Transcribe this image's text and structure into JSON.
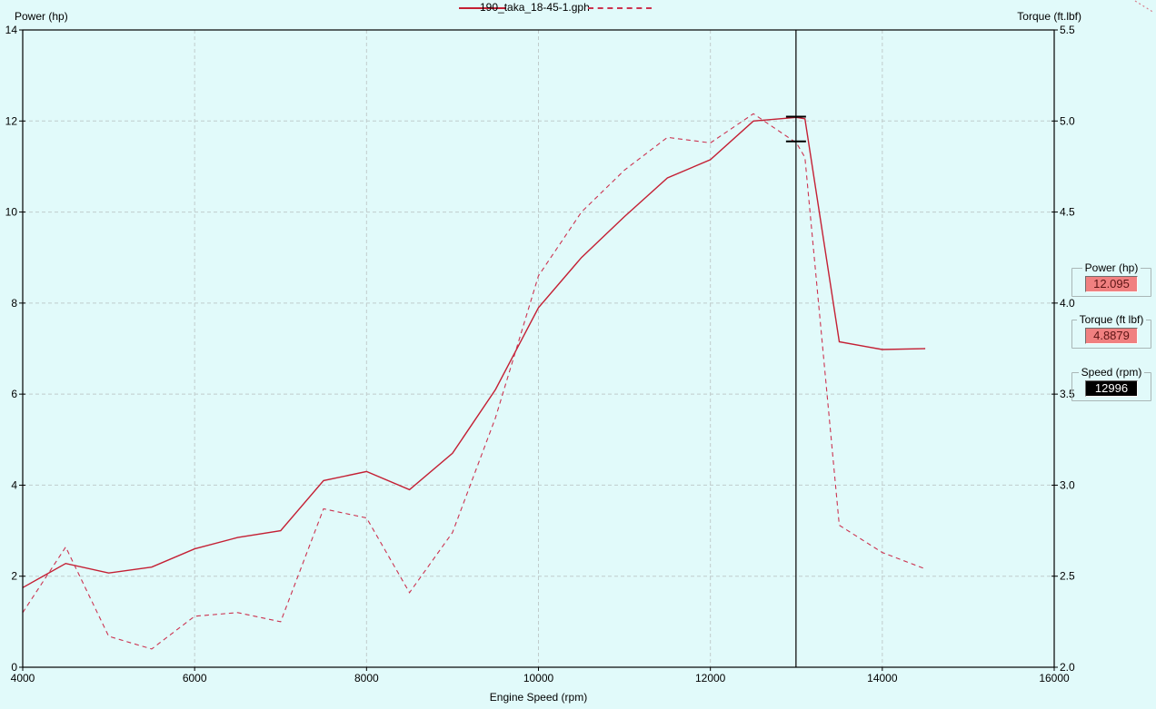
{
  "window": {
    "background": "#e1fafa"
  },
  "legend": {
    "file_label": "190_taka_18-45-1.gph"
  },
  "axes": {
    "left_title": "Power (hp)",
    "right_title": "Torque (ft.lbf)",
    "x_title": "Engine Speed (rpm)"
  },
  "readouts": {
    "power": {
      "label": "Power (hp)",
      "value": "12.095"
    },
    "torque": {
      "label": "Torque (ft lbf)",
      "value": "4.8879"
    },
    "speed": {
      "label": "Speed (rpm)",
      "value": "12996"
    }
  },
  "colors": {
    "background": "#e1fafa",
    "grid": "#c0cccc",
    "axis": "#000000",
    "power_line": "#c42034",
    "torque_line": "#cc3350",
    "cursor": "#000000",
    "readout_value_bg": "#f08080",
    "readout_value_text": "#5c1414",
    "speed_value_bg": "#000000",
    "speed_value_text": "#ffffff",
    "corner_artifact": "#d76a7a"
  },
  "chart_data": {
    "type": "line",
    "title": "190_taka_18-45-1.gph",
    "xlabel": "Engine Speed (rpm)",
    "grid": true,
    "legend_position": "top-center",
    "x_axis": {
      "min": 4000,
      "max": 16000,
      "ticks": [
        4000,
        6000,
        8000,
        10000,
        12000,
        14000,
        16000
      ],
      "tick_labels": [
        "4000",
        "6000",
        "8000",
        "10000",
        "12000",
        "14000",
        "16000"
      ]
    },
    "left_axis": {
      "title": "Power (hp)",
      "min": 0,
      "max": 14,
      "ticks": [
        14,
        12,
        10,
        8,
        6,
        4,
        2,
        0
      ],
      "tick_labels": [
        "14",
        "12",
        "10",
        "8",
        "6",
        "4",
        "2",
        "0"
      ]
    },
    "right_axis": {
      "title": "Torque (ft.lbf)",
      "min": 2.0,
      "max": 5.5,
      "ticks": [
        5.5,
        5.0,
        4.5,
        4.0,
        3.5,
        3.0,
        2.5,
        2.0
      ],
      "tick_labels": [
        "5.5",
        "5.0",
        "4.5",
        "4.0",
        "3.5",
        "3.0",
        "2.5",
        "2.0"
      ]
    },
    "x": [
      4000,
      4500,
      5000,
      5500,
      6000,
      6500,
      7000,
      7500,
      8000,
      8500,
      9000,
      9500,
      10000,
      10500,
      11000,
      11500,
      12000,
      12500,
      13000,
      13100,
      13500,
      14000,
      14500
    ],
    "series": [
      {
        "name": "Power (hp)",
        "axis": "left",
        "line_style": "solid",
        "color": "#c42034",
        "values": [
          1.75,
          2.28,
          2.07,
          2.2,
          2.6,
          2.85,
          3.0,
          4.1,
          4.3,
          3.9,
          4.7,
          6.1,
          7.9,
          9.0,
          9.9,
          10.75,
          11.15,
          12.0,
          12.08,
          12.05,
          7.15,
          6.98,
          7.0
        ]
      },
      {
        "name": "Torque (ft.lbf)",
        "axis": "right",
        "line_style": "dashed",
        "color": "#cc3350",
        "values": [
          2.3,
          2.66,
          2.17,
          2.1,
          2.28,
          2.3,
          2.25,
          2.87,
          2.82,
          2.41,
          2.74,
          3.37,
          4.15,
          4.5,
          4.73,
          4.91,
          4.88,
          5.04,
          4.88,
          4.8,
          2.78,
          2.63,
          2.54
        ]
      }
    ],
    "cursor": {
      "speed_rpm": 12996,
      "power_hp": 12.095,
      "torque_ftlbf": 4.8879
    }
  }
}
